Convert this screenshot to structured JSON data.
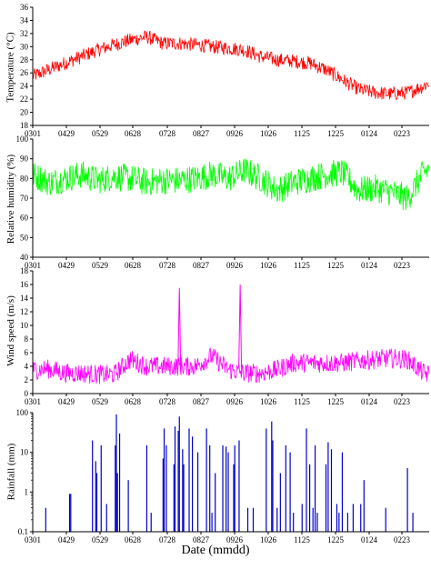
{
  "chart_data": [
    {
      "type": "line",
      "ylabel": "Temperature  (°C)",
      "ylim": [
        18,
        36
      ],
      "yticks": [
        18,
        20,
        22,
        24,
        26,
        28,
        30,
        32,
        34,
        36
      ],
      "yscale": "linear",
      "xticks": [
        "0301",
        "0429",
        "0529",
        "0628",
        "0728",
        "0827",
        "0926",
        "1026",
        "1125",
        "1225",
        "0124",
        "0223"
      ],
      "xlim_days": [
        0,
        365
      ],
      "series": [
        {
          "color": "#ff0000",
          "x": [
            0,
            15,
            30,
            45,
            60,
            75,
            90,
            105,
            120,
            135,
            150,
            165,
            180,
            195,
            210,
            225,
            240,
            255,
            270,
            285,
            300,
            315,
            330,
            345,
            360,
            365
          ],
          "y": [
            25.5,
            26.5,
            27.5,
            28.5,
            29.5,
            30.3,
            31.0,
            31.5,
            30.5,
            30.5,
            30.3,
            30.0,
            29.8,
            29.5,
            28.5,
            28.0,
            27.8,
            27.5,
            26.5,
            25.0,
            23.5,
            23.0,
            22.8,
            23.0,
            24.0,
            24.5
          ]
        }
      ]
    },
    {
      "type": "line",
      "ylabel": "Relative  humidity  (%)",
      "ylim": [
        40,
        100
      ],
      "yticks": [
        40,
        50,
        60,
        70,
        80,
        90,
        100
      ],
      "yscale": "linear",
      "xticks": [
        "0301",
        "0429",
        "0529",
        "0628",
        "0728",
        "0827",
        "0926",
        "1026",
        "1125",
        "1225",
        "0124",
        "0223"
      ],
      "xlim_days": [
        0,
        365
      ],
      "series": [
        {
          "color": "#00ff00",
          "x": [
            0,
            15,
            30,
            45,
            60,
            75,
            90,
            105,
            120,
            135,
            150,
            165,
            180,
            195,
            210,
            225,
            240,
            255,
            270,
            285,
            300,
            315,
            330,
            345,
            360,
            365
          ],
          "y": [
            82,
            78,
            80,
            82,
            79,
            81,
            80,
            78,
            79,
            79,
            80,
            82,
            80,
            84,
            80,
            74,
            78,
            80,
            82,
            83,
            74,
            75,
            73,
            70,
            83,
            85
          ]
        }
      ]
    },
    {
      "type": "line",
      "ylabel": "Wind  speed  (m/s)",
      "ylim": [
        0,
        18
      ],
      "yticks": [
        0,
        2,
        4,
        6,
        8,
        10,
        12,
        14,
        16,
        18
      ],
      "yscale": "linear",
      "xticks": [
        "0301",
        "0429",
        "0529",
        "0628",
        "0728",
        "0827",
        "0926",
        "1026",
        "1125",
        "1225",
        "0124",
        "0223"
      ],
      "xlim_days": [
        0,
        365
      ],
      "series": [
        {
          "color": "#ff00ff",
          "x": [
            0,
            15,
            30,
            45,
            60,
            75,
            90,
            105,
            120,
            135,
            150,
            165,
            180,
            195,
            210,
            225,
            240,
            255,
            270,
            285,
            300,
            315,
            330,
            345,
            360,
            365
          ],
          "y": [
            3.5,
            3.6,
            3.0,
            3.0,
            2.8,
            2.8,
            5.0,
            4.0,
            4.0,
            4.0,
            4.0,
            5.5,
            3.5,
            3.0,
            3.0,
            3.5,
            4.5,
            4.5,
            4.5,
            4.5,
            4.8,
            5.0,
            5.2,
            5.0,
            3.0,
            2.8
          ]
        },
        {
          "peaks": [
            {
              "x": 135,
              "y": 15.5
            },
            {
              "x": 191,
              "y": 16.0
            }
          ]
        }
      ]
    },
    {
      "type": "bar",
      "ylabel": "Rainfall   (mm)",
      "ylim": [
        0.1,
        100
      ],
      "yticks": [
        0.1,
        1,
        10,
        100
      ],
      "yscale": "log",
      "xticks": [
        "0301",
        "0429",
        "0529",
        "0628",
        "0728",
        "0827",
        "0926",
        "1026",
        "1125",
        "1225",
        "0124",
        "0223"
      ],
      "xlim_days": [
        0,
        365
      ],
      "series": [
        {
          "color": "#0000cc",
          "x": [
            12,
            34,
            35,
            55,
            58,
            59,
            63,
            68,
            76,
            77,
            78,
            80,
            88,
            105,
            109,
            120,
            121,
            123,
            130,
            131,
            134,
            135,
            138,
            139,
            144,
            147,
            152,
            160,
            163,
            165,
            168,
            175,
            178,
            180,
            185,
            186,
            190,
            198,
            203,
            215,
            220,
            221,
            225,
            228,
            233,
            237,
            240,
            248,
            252,
            255,
            258,
            260,
            262,
            270,
            272,
            275,
            280,
            282,
            285,
            290,
            295,
            302,
            305,
            325,
            345,
            350
          ],
          "y": [
            0.4,
            0.9,
            0.9,
            20,
            6,
            3,
            15,
            0.5,
            15,
            90,
            3,
            30,
            2,
            15,
            0.3,
            7,
            40,
            15,
            5,
            45,
            35,
            80,
            12,
            5,
            40,
            25,
            10,
            40,
            15,
            0.3,
            3,
            15,
            14,
            10,
            5,
            15,
            20,
            0.4,
            0.4,
            40,
            60,
            20,
            0.4,
            3,
            15,
            10,
            0.3,
            0.5,
            40,
            5,
            0.4,
            15,
            0.3,
            5,
            18,
            12,
            0.5,
            0.3,
            10,
            0.3,
            0.5,
            0.5,
            2,
            0.4,
            4,
            0.3
          ]
        }
      ]
    }
  ],
  "xlabel": "Date (mmdd)"
}
